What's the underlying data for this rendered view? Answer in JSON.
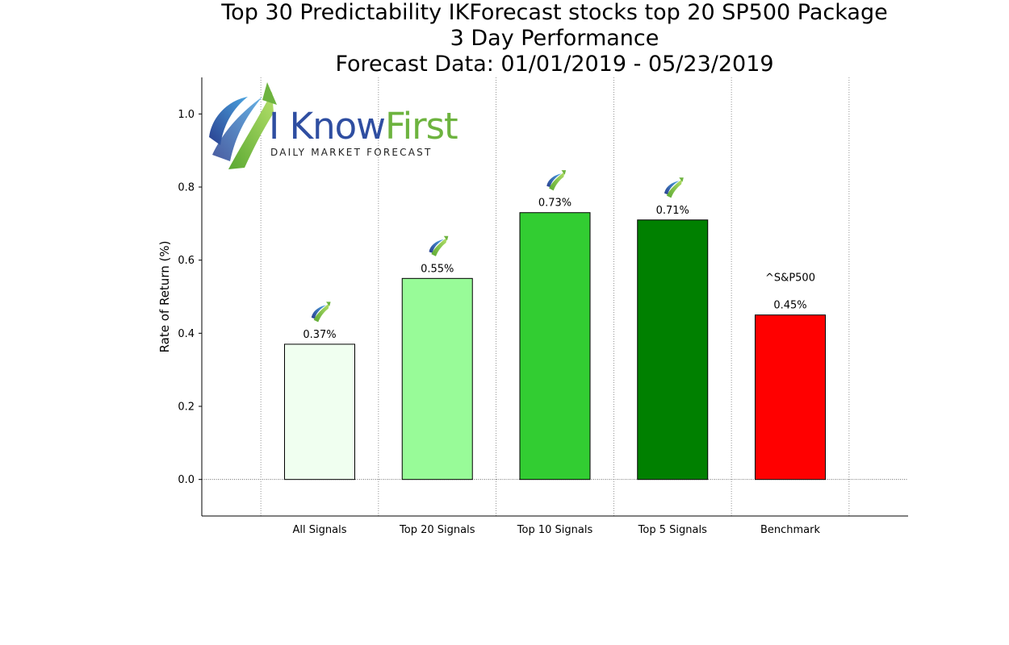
{
  "title_lines": [
    "Top 30 Predictability IKForecast stocks top 20 SP500 Package",
    "3 Day Performance",
    "Forecast Data: 01/01/2019 - 05/23/2019"
  ],
  "logo": {
    "brand_part1": "I Know",
    "brand_part2": "First",
    "tagline": "Daily Market Forecast",
    "colors": {
      "blue": "#2f4ea1",
      "green": "#6db33f"
    }
  },
  "chart_data": {
    "type": "bar",
    "categories": [
      "All Signals",
      "Top 20 Signals",
      "Top 10 Signals",
      "Top 5 Signals",
      "Benchmark"
    ],
    "values": [
      0.37,
      0.55,
      0.73,
      0.71,
      0.45
    ],
    "data_labels": [
      "0.37%",
      "0.55%",
      "0.73%",
      "0.71%",
      "0.45%"
    ],
    "colors": [
      "#f0fff0",
      "#98fb98",
      "#32cd32",
      "#008000",
      "#ff0000"
    ],
    "benchmark_annotation": "^S&P500",
    "ylabel": "Rate of Return (%)",
    "ylim": [
      -0.1,
      1.1
    ],
    "yticks": [
      0.0,
      0.2,
      0.4,
      0.6,
      0.8,
      1.0
    ],
    "ytick_labels": [
      "0.0",
      "0.2",
      "0.4",
      "0.6",
      "0.8",
      "1.0"
    ],
    "grid": "vertical dotted",
    "zero_line": "dotted",
    "logo_markers_on_bars": [
      true,
      true,
      true,
      true,
      false
    ]
  }
}
